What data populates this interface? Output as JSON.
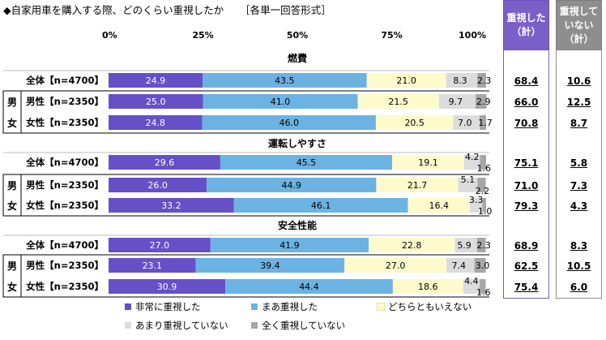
{
  "title": "◆自家用車を購入する際、どのくらい重視したか",
  "subtitle": "［各単一回答形式］",
  "summary_headers": [
    {
      "lines": [
        "重視した",
        "（計）"
      ],
      "color": "#7a5fc9"
    },
    {
      "lines": [
        "重視して",
        "いない",
        "（計）"
      ],
      "color": "#8e8e8e"
    }
  ],
  "colors": {
    "非常に重視した": "#6650c8",
    "まあ重視した": "#6cb3e3",
    "どちらともいえない": "#fdfbcc",
    "あまり重視していない": "#dcdcdc",
    "全く重視していない": "#a6a6a6"
  },
  "gender_labels": [
    "男",
    "女"
  ],
  "chart_data": {
    "type": "bar",
    "orientation": "horizontal",
    "stacked": true,
    "xlim": [
      0,
      100
    ],
    "xticks": [
      "0%",
      "25%",
      "50%",
      "75%",
      "100%"
    ],
    "legend_placement": "bottom",
    "series_names": [
      "非常に重視した",
      "まあ重視した",
      "どちらともいえない",
      "あまり重視していない",
      "全く重視していない"
    ],
    "groups": [
      {
        "name": "燃費",
        "rows": [
          {
            "label": "全体【n=4700】",
            "values": [
              24.9,
              43.5,
              21.0,
              8.3,
              2.3
            ],
            "sum_yes": "68.4",
            "sum_no": "10.6"
          },
          {
            "label": "男性【n=2350】",
            "values": [
              25.0,
              41.0,
              21.5,
              9.7,
              2.9
            ],
            "sum_yes": "66.0",
            "sum_no": "12.5"
          },
          {
            "label": "女性【n=2350】",
            "values": [
              24.8,
              46.0,
              20.5,
              7.0,
              1.7
            ],
            "sum_yes": "70.8",
            "sum_no": "8.7"
          }
        ]
      },
      {
        "name": "運転しやすさ",
        "rows": [
          {
            "label": "全体【n=4700】",
            "values": [
              29.6,
              45.5,
              19.1,
              4.2,
              1.6
            ],
            "sum_yes": "75.1",
            "sum_no": "5.8"
          },
          {
            "label": "男性【n=2350】",
            "values": [
              26.0,
              44.9,
              21.7,
              5.1,
              2.2
            ],
            "sum_yes": "71.0",
            "sum_no": "7.3"
          },
          {
            "label": "女性【n=2350】",
            "values": [
              33.2,
              46.1,
              16.4,
              3.3,
              1.0
            ],
            "sum_yes": "79.3",
            "sum_no": "4.3"
          }
        ]
      },
      {
        "name": "安全性能",
        "rows": [
          {
            "label": "全体【n=4700】",
            "values": [
              27.0,
              41.9,
              22.8,
              5.9,
              2.3
            ],
            "sum_yes": "68.9",
            "sum_no": "8.3"
          },
          {
            "label": "男性【n=2350】",
            "values": [
              23.1,
              39.4,
              27.0,
              7.4,
              3.0
            ],
            "sum_yes": "62.5",
            "sum_no": "10.5"
          },
          {
            "label": "女性【n=2350】",
            "values": [
              30.9,
              44.4,
              18.6,
              4.4,
              1.6
            ],
            "sum_yes": "75.4",
            "sum_no": "6.0"
          }
        ]
      }
    ]
  }
}
